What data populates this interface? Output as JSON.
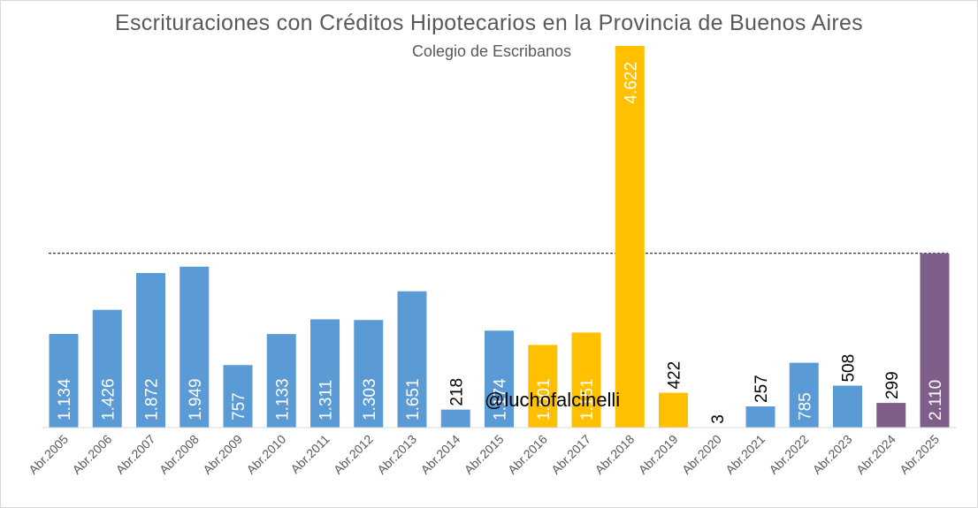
{
  "chart_data": {
    "type": "bar",
    "title": "Escrituraciones  con Créditos Hipotecarios en la Provincia de Buenos Aires",
    "subtitle": "Colegio de Escribanos",
    "categories": [
      "Abr.2005",
      "Abr.2006",
      "Abr.2007",
      "Abr.2008",
      "Abr.2009",
      "Abr.2010",
      "Abr.2011",
      "Abr.2012",
      "Abr.2013",
      "Abr.2014",
      "Abr.2015",
      "Abr.2016",
      "Abr.2017",
      "Abr.2018",
      "Abr.2019",
      "Abr.2020",
      "Abr.2021",
      "Abr.2022",
      "Abr.2023",
      "Abr.2024",
      "Abr.2025"
    ],
    "values": [
      1134,
      1426,
      1872,
      1949,
      757,
      1133,
      1311,
      1303,
      1651,
      218,
      1174,
      1001,
      1151,
      4622,
      422,
      3,
      257,
      785,
      508,
      299,
      2110
    ],
    "value_labels": [
      "1.134",
      "1.426",
      "1.872",
      "1.949",
      "757",
      "1.133",
      "1.311",
      "1.303",
      "1.651",
      "218",
      "1.174",
      "1.001",
      "1.151",
      "4.622",
      "422",
      "3",
      "257",
      "785",
      "508",
      "299",
      "2.110"
    ],
    "colors": [
      "#5b9bd5",
      "#5b9bd5",
      "#5b9bd5",
      "#5b9bd5",
      "#5b9bd5",
      "#5b9bd5",
      "#5b9bd5",
      "#5b9bd5",
      "#5b9bd5",
      "#5b9bd5",
      "#5b9bd5",
      "#ffc000",
      "#ffc000",
      "#ffc000",
      "#ffc000",
      "#5b9bd5",
      "#5b9bd5",
      "#5b9bd5",
      "#5b9bd5",
      "#7f5f8a",
      "#7f5f8a"
    ],
    "ylim": [
      0,
      4622
    ],
    "reference_line": 2110,
    "grid": false,
    "legend": "none"
  },
  "watermark": "@luchofalcinelli"
}
